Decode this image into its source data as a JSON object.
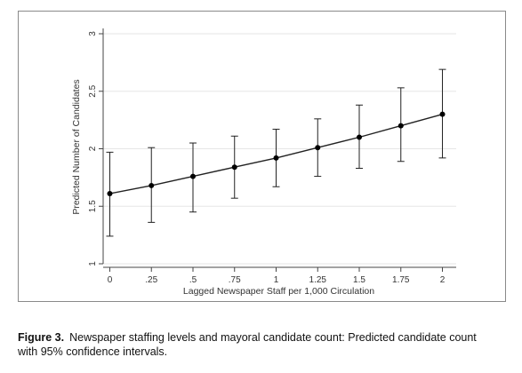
{
  "chart_data": {
    "type": "line",
    "title": "",
    "xlabel": "Lagged Newspaper Staff per 1,000 Circulation",
    "ylabel": "Predicted Number of Candidates",
    "x": [
      0,
      0.25,
      0.5,
      0.75,
      1,
      1.25,
      1.5,
      1.75,
      2
    ],
    "x_tick_labels": [
      "0",
      ".25",
      ".5",
      ".75",
      "1",
      "1.25",
      "1.5",
      "1.75",
      "2"
    ],
    "y_ticks": [
      1,
      1.5,
      2,
      2.5,
      3
    ],
    "y_tick_labels": [
      "1",
      "1.5",
      "2",
      "2.5",
      "3"
    ],
    "xlim": [
      0,
      2
    ],
    "ylim": [
      1,
      3
    ],
    "grid": "horizontal",
    "series": [
      {
        "values": [
          1.61,
          1.68,
          1.76,
          1.84,
          1.92,
          2.01,
          2.1,
          2.2,
          2.3
        ],
        "ci_lower": [
          1.24,
          1.36,
          1.45,
          1.57,
          1.67,
          1.76,
          1.83,
          1.89,
          1.92
        ],
        "ci_upper": [
          1.97,
          2.01,
          2.05,
          2.11,
          2.17,
          2.26,
          2.38,
          2.53,
          2.69
        ]
      }
    ],
    "colors": {
      "line": "#222222",
      "grid": "#e6e6e6",
      "axis": "#444444"
    }
  },
  "caption": {
    "label": "Figure 3.",
    "text": "Newspaper staffing levels and mayoral candidate count: Predicted candidate count with 95% confidence intervals."
  }
}
